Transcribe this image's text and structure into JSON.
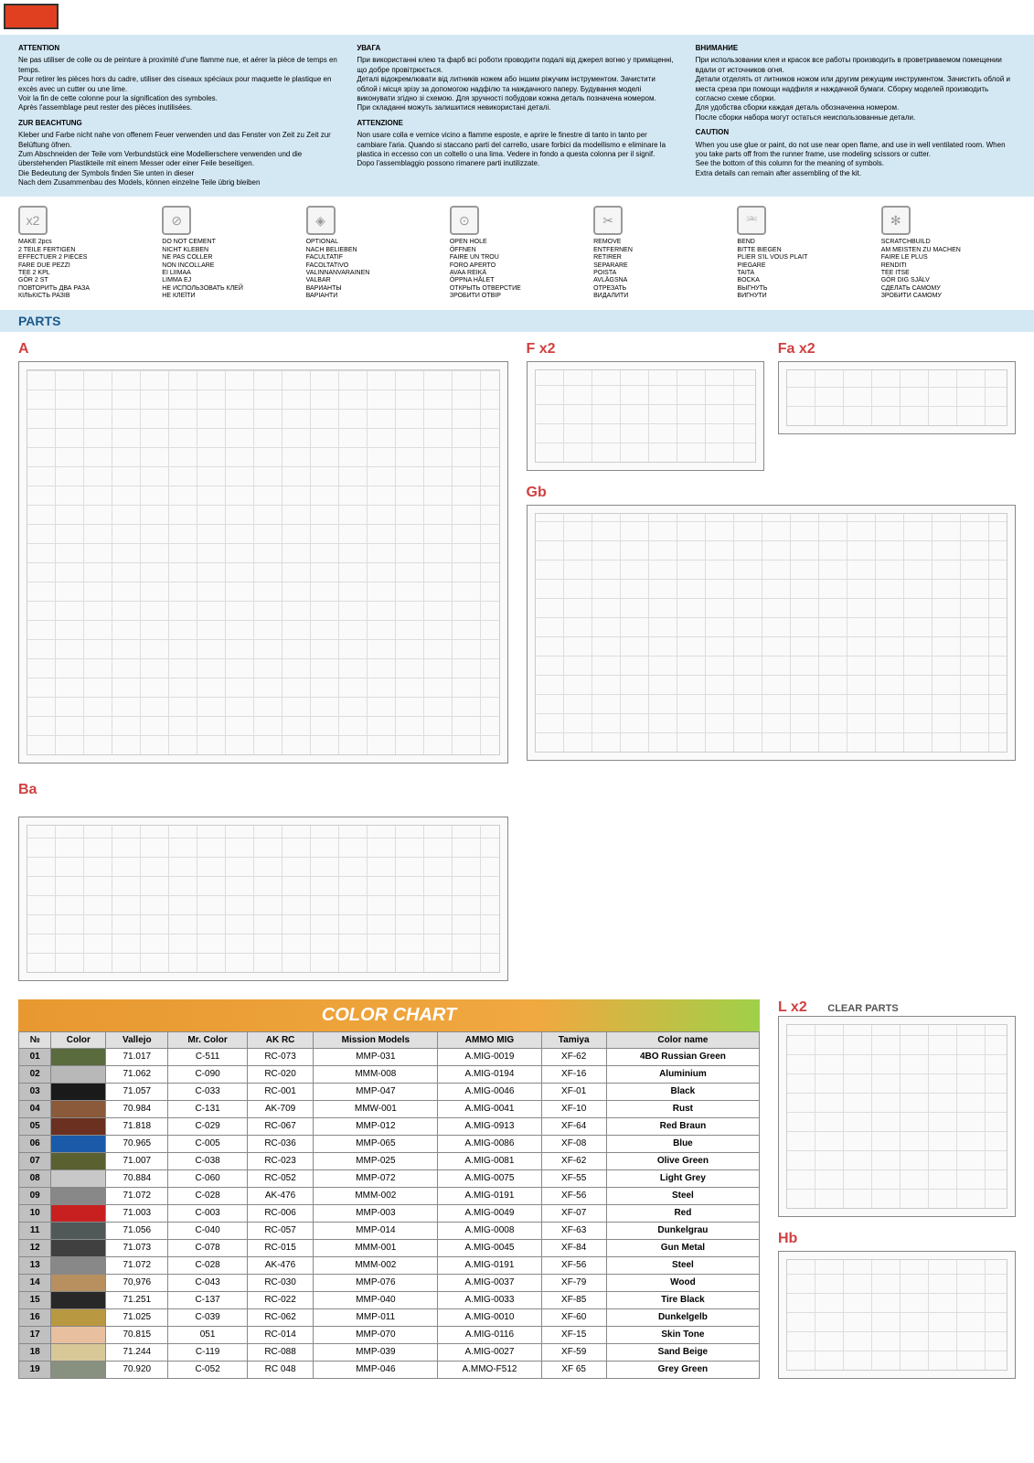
{
  "warnings": {
    "col1": {
      "h1": "ATTENTION",
      "t1": "Ne pas utiliser de colle ou de peinture à proximité d'une flamme nue, et aérer la pièce de temps en temps.\nPour retirer les pièces hors du cadre, utiliser des ciseaux spéciaux pour maquette le plastique en excès avec un cutter ou une lime.\nVoir la fin de cette colonne pour la signification des symboles.\nAprès l'assemblage peut rester des pièces inutilisées.",
      "h2": "ZUR BEACHTUNG",
      "t2": "Kleber und Farbe nicht nahe von offenem Feuer verwenden und das Fenster von Zeit zu Zeit zur Belüftung öfnen.\nZum Abschneiden der Teile vom Verbundstück eine Modellierschere verwenden und die überstehenden Plastikteile mit einem Messer oder einer Feile beseitigen.\nDie Bedeutung der Symbols finden Sie unten in dieser\nNach dem Zusammenbau des Models, können einzelne Teile übrig bleiben"
    },
    "col2": {
      "h1": "УВАГА",
      "t1": "При використанні клею та фарб всі роботи проводити подалі від джерел вогню у приміщенні, що добре провітрюється.\nДеталі відокремлювати від литників ножем або іншим ріжучим інструментом. Зачистити облой і місця зрізу за допомогою надфілю та наждачного паперу. Будування моделі виконувати згідно зі схемою. Для зручності побудови кожна деталь позначена номером.\nПри складанні можуть залишитися невикористані деталі.",
      "h2": "ATTENZIONE",
      "t2": "Non usare colla e vernice vicino a flamme esposte, e aprire le finestre di tanto in tanto per cambiare l'aria. Quando si staccano parti del carrello, usare forbici da modellismo e eliminare la plastica in eccesso con un coltello o una lima. Vedere in fondo a questa colonna per il signif.\nDopo l'assemblaggio possono rimanere parti inutilizzate."
    },
    "col3": {
      "h1": "ВНИМАНИЕ",
      "t1": "При использовании клея и красок все работы производить в проветриваемом помещении вдали от источников огня.\nДетали отделять от литников ножом или другим режущим инструментом. Зачистить облой и места среза при помощи надфиля и наждачной бумаги. Сборку моделей производить согласно схеме сборки.\nДля удобства сборки каждая деталь обозначенна номером.\nПосле сборки набора могут остаться неиспользованные детали.",
      "h2": "CAUTION",
      "t2": "When you use glue or paint, do not use near open flame, and use in well ventilated room. When you take parts off from the runner frame, use modeling scissors or cutter.\nSee the bottom of this column for the meaning of symbols.\nExtra details can remain after assembling of the kit."
    }
  },
  "symbols": [
    {
      "icon": "x2",
      "text": "MAKE 2pcs\n2 TEILE FERTIGEN\nEFFECTUER 2 PIECES\nFARE DUE PEZZI\nTEE 2 KPL\nGÖR 2 ST\nПОВТОРИТЬ ДВА РАЗА\nКІЛЬКІСТЬ РАЗІВ"
    },
    {
      "icon": "⊘",
      "text": "DO NOT CEMENT\nNICHT KLEBEN\nNE PAS COLLER\nNON INCOLLARE\nEI LIIMAA\nLIMMA EJ\nНЕ ИСПОЛЬЗОВАТЬ КЛЕЙ\nНЕ КЛЕЇТИ"
    },
    {
      "icon": "◈",
      "text": "OPTIONAL\nNACH BELIEBEN\nFACULTATIF\nFACOLTATIVO\nVALINNANVARAINEN\nVALBAR\nВАРИАНТЫ\nВАРІАНТИ"
    },
    {
      "icon": "⊙",
      "text": "OPEN HOLE\nÖFFNEN\nFAIRE UN TROU\nFORO APERTO\nAVAA REIKÄ\nÖPPNA HÅLET\nОТКРЫТЬ ОТВЕРСТИЕ\nЗРОБИТИ ОТВІР"
    },
    {
      "icon": "✂",
      "text": "REMOVE\nENTFERNEN\nRETIRER\nSEPARARE\nPOISTA\nAVLÄGSNA\nОТРЕЗАТЬ\nВИДАЛИТИ"
    },
    {
      "icon": "⎃",
      "text": "BEND\nBITTE BIEGEN\nPLIER S'IL VOUS PLAIT\nPIEGARE\nTAITA\nBOCKA\nВЫГНУТЬ\nВИГНУТИ"
    },
    {
      "icon": "✻",
      "text": "SCRATCHBUILD\nAM MEISTEN ZU MACHEN\nFAIRE LE PLUS\nRENDITI\nTEE ITSE\nGÖR DIG SJÄLV\nСДЕЛАТЬ САМОМУ\nЗРОБИТИ САМОМУ"
    }
  ],
  "parts_header": "PARTS",
  "sprues": {
    "a": "A",
    "ba": "Ba",
    "f": "F x2",
    "fa": "Fa x2",
    "gb": "Gb",
    "l": "L x2",
    "l_sub": "CLEAR PARTS",
    "hb": "Hb"
  },
  "color_chart": {
    "title": "COLOR CHART",
    "headers": [
      "№",
      "Color",
      "Vallejo",
      "Mr. Color",
      "AK RC",
      "Mission Models",
      "AMMO MIG",
      "Tamiya",
      "Color name"
    ],
    "rows": [
      {
        "n": "01",
        "c": "#5a6b3e",
        "v": "71.017",
        "m": "C-511",
        "a": "RC-073",
        "mm": "MMP-031",
        "am": "A.MIG-0019",
        "t": "XF-62",
        "name": "4BO Russian Green"
      },
      {
        "n": "02",
        "c": "#b8b8b8",
        "v": "71.062",
        "m": "C-090",
        "a": "RC-020",
        "mm": "MMM-008",
        "am": "A.MIG-0194",
        "t": "XF-16",
        "name": "Aluminium"
      },
      {
        "n": "03",
        "c": "#1a1a1a",
        "v": "71.057",
        "m": "C-033",
        "a": "RC-001",
        "mm": "MMP-047",
        "am": "A.MIG-0046",
        "t": "XF-01",
        "name": "Black"
      },
      {
        "n": "04",
        "c": "#8a5a3a",
        "v": "70.984",
        "m": "C-131",
        "a": "AK-709",
        "mm": "MMW-001",
        "am": "A.MIG-0041",
        "t": "XF-10",
        "name": "Rust"
      },
      {
        "n": "05",
        "c": "#6b3020",
        "v": "71.818",
        "m": "C-029",
        "a": "RC-067",
        "mm": "MMP-012",
        "am": "A.MIG-0913",
        "t": "XF-64",
        "name": "Red Braun"
      },
      {
        "n": "06",
        "c": "#1a5aa8",
        "v": "70.965",
        "m": "C-005",
        "a": "RC-036",
        "mm": "MMP-065",
        "am": "A.MIG-0086",
        "t": "XF-08",
        "name": "Blue"
      },
      {
        "n": "07",
        "c": "#5a6030",
        "v": "71.007",
        "m": "C-038",
        "a": "RC-023",
        "mm": "MMP-025",
        "am": "A.MIG-0081",
        "t": "XF-62",
        "name": "Olive Green"
      },
      {
        "n": "08",
        "c": "#c8c8c8",
        "v": "70.884",
        "m": "C-060",
        "a": "RC-052",
        "mm": "MMP-072",
        "am": "A.MIG-0075",
        "t": "XF-55",
        "name": "Light Grey"
      },
      {
        "n": "09",
        "c": "#888888",
        "v": "71.072",
        "m": "C-028",
        "a": "AK-476",
        "mm": "MMM-002",
        "am": "A.MIG-0191",
        "t": "XF-56",
        "name": "Steel"
      },
      {
        "n": "10",
        "c": "#c82020",
        "v": "71.003",
        "m": "C-003",
        "a": "RC-006",
        "mm": "MMP-003",
        "am": "A.MIG-0049",
        "t": "XF-07",
        "name": "Red"
      },
      {
        "n": "11",
        "c": "#505858",
        "v": "71.056",
        "m": "C-040",
        "a": "RC-057",
        "mm": "MMP-014",
        "am": "A.MIG-0008",
        "t": "XF-63",
        "name": "Dunkelgrau"
      },
      {
        "n": "12",
        "c": "#404040",
        "v": "71.073",
        "m": "C-078",
        "a": "RC-015",
        "mm": "MMM-001",
        "am": "A.MIG-0045",
        "t": "XF-84",
        "name": "Gun Metal"
      },
      {
        "n": "13",
        "c": "#888888",
        "v": "71.072",
        "m": "C-028",
        "a": "AK-476",
        "mm": "MMM-002",
        "am": "A.MIG-0191",
        "t": "XF-56",
        "name": "Steel"
      },
      {
        "n": "14",
        "c": "#b89060",
        "v": "70,976",
        "m": "C-043",
        "a": "RC-030",
        "mm": "MMP-076",
        "am": "A.MIG-0037",
        "t": "XF-79",
        "name": "Wood"
      },
      {
        "n": "15",
        "c": "#282828",
        "v": "71.251",
        "m": "C-137",
        "a": "RC-022",
        "mm": "MMP-040",
        "am": "A.MIG-0033",
        "t": "XF-85",
        "name": "Tire Black"
      },
      {
        "n": "16",
        "c": "#b89840",
        "v": "71.025",
        "m": "C-039",
        "a": "RC-062",
        "mm": "MMP-011",
        "am": "A.MIG-0010",
        "t": "XF-60",
        "name": "Dunkelgelb"
      },
      {
        "n": "17",
        "c": "#e8c0a0",
        "v": "70.815",
        "m": "051",
        "a": "RC-014",
        "mm": "MMP-070",
        "am": "A.MIG-0116",
        "t": "XF-15",
        "name": "Skin Tone"
      },
      {
        "n": "18",
        "c": "#d8c898",
        "v": "71.244",
        "m": "C-119",
        "a": "RC-088",
        "mm": "MMP-039",
        "am": "A.MIG-0027",
        "t": "XF-59",
        "name": "Sand Beige"
      },
      {
        "n": "19",
        "c": "#889080",
        "v": "70.920",
        "m": "C-052",
        "a": "RC 048",
        "mm": "MMP-046",
        "am": "A.MMO-F512",
        "t": "XF 65",
        "name": "Grey Green"
      }
    ]
  }
}
